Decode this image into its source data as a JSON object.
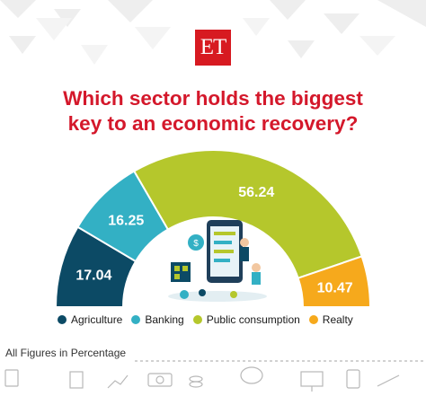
{
  "logo": {
    "text": "ET"
  },
  "title": {
    "line1": "Which sector holds the biggest",
    "line2": "key to an economic recovery?"
  },
  "chart_data": {
    "type": "pie",
    "variant": "semi-donut",
    "title": "Which sector holds the biggest key to an economic recovery?",
    "categories": [
      "Agriculture",
      "Banking",
      "Public consumption",
      "Realty"
    ],
    "values": [
      17.04,
      16.25,
      56.24,
      10.47
    ],
    "colors": [
      "#0c4a65",
      "#33b0c4",
      "#b5c72c",
      "#f6a91c"
    ],
    "legend_position": "bottom"
  },
  "footnote": "All Figures in Percentage",
  "theme": {
    "title_color": "#d4182b",
    "logo_color": "#d71a21"
  }
}
